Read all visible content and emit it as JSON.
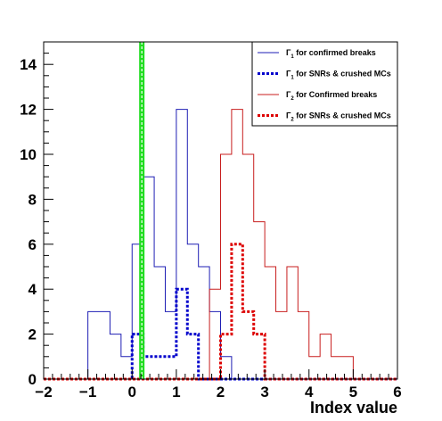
{
  "chart_data": {
    "type": "histogram",
    "title": "",
    "xlabel": "Index value",
    "ylabel": "",
    "xlim": [
      -2,
      6
    ],
    "ylim": [
      0,
      15
    ],
    "x_ticks": [
      "−2",
      "−1",
      "0",
      "1",
      "2",
      "3",
      "4",
      "5",
      "6"
    ],
    "y_ticks": [
      "0",
      "2",
      "4",
      "6",
      "8",
      "10",
      "12",
      "14"
    ],
    "bin_edges": [
      -2.0,
      -1.75,
      -1.5,
      -1.25,
      -1.0,
      -0.75,
      -0.5,
      -0.25,
      0.0,
      0.25,
      0.5,
      0.75,
      1.0,
      1.25,
      1.5,
      1.75,
      2.0,
      2.25,
      2.5,
      2.75,
      3.0,
      3.25,
      3.5,
      3.75,
      4.0,
      4.25,
      4.5,
      4.75,
      5.0,
      5.25,
      5.5,
      5.75,
      6.0
    ],
    "series": [
      {
        "name": "Γ1 for confirmed breaks",
        "legend_main": "Γ",
        "legend_sub": "1",
        "legend_rest": " for confirmed breaks",
        "color": "#1e1eb4",
        "style": "solid",
        "counts": [
          0,
          0,
          0,
          0,
          3,
          3,
          2,
          1,
          6,
          9,
          5,
          3,
          12,
          6,
          5,
          3,
          1,
          0,
          0,
          0,
          0,
          0,
          0,
          0,
          0,
          0,
          0,
          0,
          0,
          0,
          0,
          0
        ]
      },
      {
        "name": "Γ1 for SNRs & crushed MCs",
        "legend_main": "Γ",
        "legend_sub": "1",
        "legend_rest": " for SNRs & crushed MCs",
        "color": "#0000cc",
        "style": "dotted",
        "counts": [
          0,
          0,
          0,
          0,
          0,
          0,
          0,
          0,
          2,
          1,
          1,
          1,
          4,
          2,
          0,
          0,
          0,
          0,
          0,
          0,
          0,
          0,
          0,
          0,
          0,
          0,
          0,
          0,
          0,
          0,
          0,
          0
        ]
      },
      {
        "name": "Γ2 for Confirmed breaks",
        "legend_main": "Γ",
        "legend_sub": "2",
        "legend_rest": " for Confirmed breaks",
        "color": "#c81e1e",
        "style": "solid",
        "counts": [
          0,
          0,
          0,
          0,
          0,
          0,
          0,
          0,
          0,
          0,
          0,
          0,
          0,
          0,
          0,
          4,
          10,
          12,
          10,
          7,
          5,
          3,
          5,
          3,
          1,
          2,
          1,
          1,
          0,
          0,
          0,
          0
        ]
      },
      {
        "name": "Γ2 for SNRs & crushed MCs",
        "legend_main": "Γ",
        "legend_sub": "2",
        "legend_rest": " for SNRs & crushed MCs",
        "color": "#dd0000",
        "style": "dotted",
        "counts": [
          0,
          0,
          0,
          0,
          0,
          0,
          0,
          0,
          0,
          0,
          0,
          0,
          0,
          0,
          0,
          0,
          2,
          6,
          3,
          2,
          0,
          0,
          0,
          0,
          0,
          0,
          0,
          0,
          0,
          0,
          0,
          0
        ]
      }
    ],
    "vertical_line": {
      "x": 0.22,
      "color": "#22dd22"
    },
    "grid": false,
    "legend_position": "top-right"
  }
}
